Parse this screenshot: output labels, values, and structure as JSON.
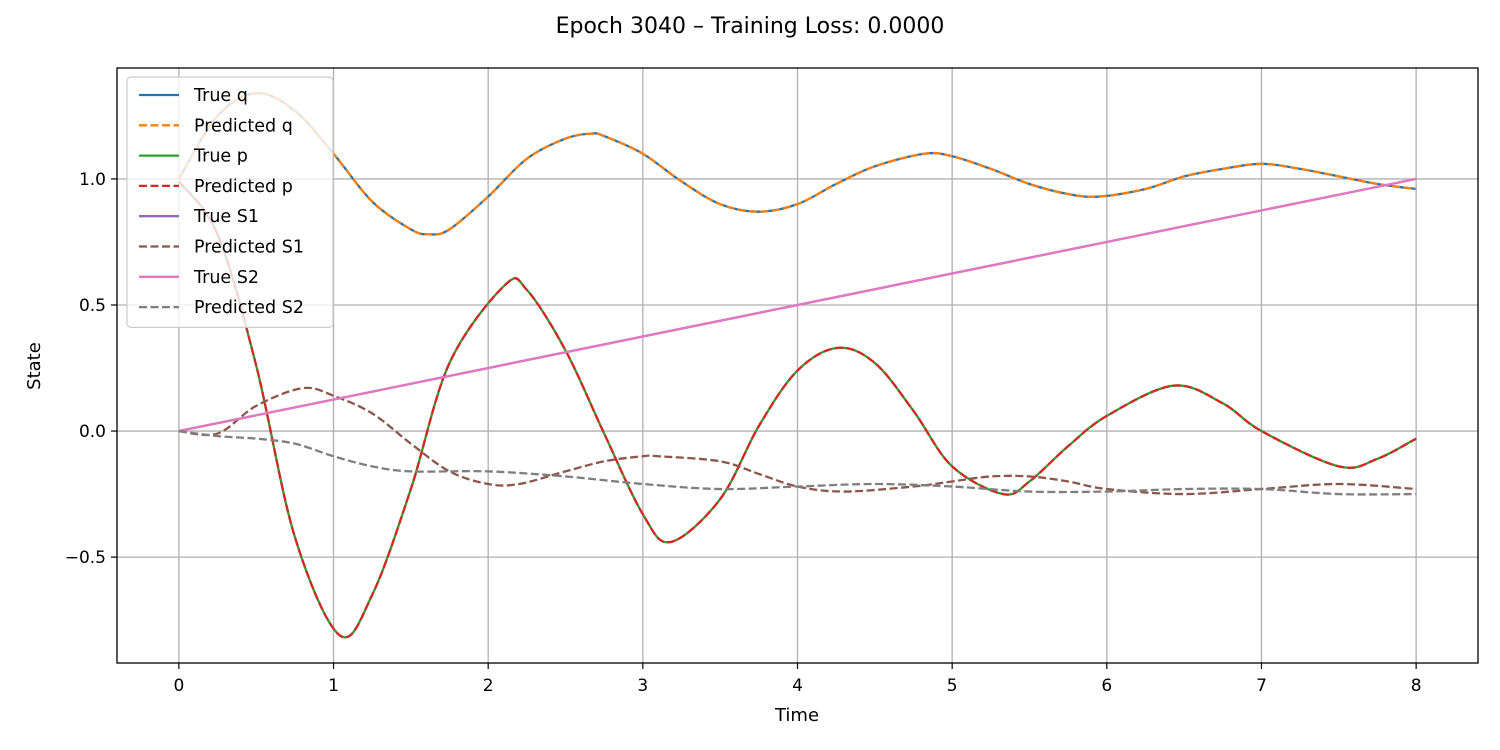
{
  "chart_data": {
    "type": "line",
    "title": "Epoch 3040 – Training Loss: 0.0000",
    "xlabel": "Time",
    "ylabel": "State",
    "xlim": [
      -0.4,
      8.4
    ],
    "ylim": [
      -0.92,
      1.44
    ],
    "xticks": [
      0,
      1,
      2,
      3,
      4,
      5,
      6,
      7,
      8
    ],
    "xtick_labels": [
      "0",
      "1",
      "2",
      "3",
      "4",
      "5",
      "6",
      "7",
      "8"
    ],
    "yticks": [
      -0.5,
      0.0,
      0.5,
      1.0
    ],
    "ytick_labels": [
      "−0.5",
      "0.0",
      "0.5",
      "1.0"
    ],
    "grid": true,
    "legend_position": "upper-left",
    "series": [
      {
        "name": "True q",
        "color": "#1f77b4",
        "style": "solid",
        "x": [
          0,
          0.25,
          0.5,
          0.75,
          1.0,
          1.25,
          1.5,
          1.62,
          1.75,
          2.0,
          2.25,
          2.5,
          2.67,
          2.75,
          3.0,
          3.25,
          3.5,
          3.75,
          4.0,
          4.25,
          4.5,
          4.82,
          5.0,
          5.25,
          5.5,
          5.75,
          5.95,
          6.25,
          6.5,
          6.75,
          7.0,
          7.25,
          7.5,
          7.75,
          8.0
        ],
        "y": [
          1.0,
          1.25,
          1.34,
          1.27,
          1.1,
          0.91,
          0.8,
          0.78,
          0.8,
          0.93,
          1.08,
          1.16,
          1.18,
          1.17,
          1.1,
          0.99,
          0.9,
          0.87,
          0.9,
          0.98,
          1.05,
          1.1,
          1.09,
          1.04,
          0.98,
          0.94,
          0.93,
          0.96,
          1.01,
          1.04,
          1.06,
          1.04,
          1.01,
          0.98,
          0.96
        ]
      },
      {
        "name": "Predicted q",
        "color": "#ff7f0e",
        "style": "dashed",
        "x": [
          0,
          0.25,
          0.5,
          0.75,
          1.0,
          1.25,
          1.5,
          1.62,
          1.75,
          2.0,
          2.25,
          2.5,
          2.67,
          2.75,
          3.0,
          3.25,
          3.5,
          3.75,
          4.0,
          4.25,
          4.5,
          4.82,
          5.0,
          5.25,
          5.5,
          5.75,
          5.95,
          6.25,
          6.5,
          6.75,
          7.0,
          7.25,
          7.5,
          7.75,
          8.0
        ],
        "y": [
          1.0,
          1.25,
          1.34,
          1.27,
          1.1,
          0.91,
          0.8,
          0.78,
          0.8,
          0.93,
          1.08,
          1.16,
          1.18,
          1.17,
          1.1,
          0.99,
          0.9,
          0.87,
          0.9,
          0.98,
          1.05,
          1.1,
          1.09,
          1.04,
          0.98,
          0.94,
          0.93,
          0.96,
          1.01,
          1.04,
          1.06,
          1.04,
          1.01,
          0.98,
          0.96
        ]
      },
      {
        "name": "True p",
        "color": "#2ca02c",
        "style": "solid",
        "x": [
          0,
          0.25,
          0.5,
          0.75,
          1.04,
          1.25,
          1.5,
          1.75,
          2.11,
          2.25,
          2.5,
          2.75,
          3.0,
          3.18,
          3.5,
          3.75,
          4.0,
          4.26,
          4.5,
          4.75,
          5.0,
          5.33,
          5.5,
          5.75,
          6.0,
          6.43,
          6.75,
          7.0,
          7.5,
          7.75,
          8.0
        ],
        "y": [
          0.99,
          0.78,
          0.26,
          -0.42,
          -0.81,
          -0.65,
          -0.23,
          0.27,
          0.58,
          0.56,
          0.32,
          -0.01,
          -0.33,
          -0.44,
          -0.27,
          0.02,
          0.24,
          0.33,
          0.27,
          0.08,
          -0.14,
          -0.25,
          -0.2,
          -0.06,
          0.06,
          0.18,
          0.11,
          0.0,
          -0.14,
          -0.11,
          -0.03
        ]
      },
      {
        "name": "Predicted p",
        "color": "#d62728",
        "style": "dashed",
        "x": [
          0,
          0.25,
          0.5,
          0.75,
          1.04,
          1.25,
          1.5,
          1.75,
          2.11,
          2.25,
          2.5,
          2.75,
          3.0,
          3.18,
          3.5,
          3.75,
          4.0,
          4.26,
          4.5,
          4.75,
          5.0,
          5.33,
          5.5,
          5.75,
          6.0,
          6.43,
          6.75,
          7.0,
          7.5,
          7.75,
          8.0
        ],
        "y": [
          0.99,
          0.78,
          0.26,
          -0.42,
          -0.81,
          -0.65,
          -0.23,
          0.27,
          0.58,
          0.56,
          0.32,
          -0.01,
          -0.33,
          -0.44,
          -0.27,
          0.02,
          0.24,
          0.33,
          0.27,
          0.08,
          -0.14,
          -0.25,
          -0.2,
          -0.06,
          0.06,
          0.18,
          0.11,
          0.0,
          -0.14,
          -0.11,
          -0.03
        ]
      },
      {
        "name": "True S1",
        "color": "#9467bd",
        "style": "solid",
        "x": [
          0,
          8
        ],
        "y": [
          0.0,
          1.0
        ]
      },
      {
        "name": "Predicted S1",
        "color": "#8c564b",
        "style": "dashed",
        "x": [
          0,
          0.25,
          0.5,
          0.8,
          1.0,
          1.25,
          1.5,
          1.75,
          2.0,
          2.2,
          2.5,
          2.75,
          3.0,
          3.1,
          3.5,
          3.75,
          4.0,
          4.3,
          4.75,
          5.0,
          5.25,
          5.5,
          5.75,
          6.0,
          6.5,
          7.0,
          7.5,
          8.0
        ],
        "y": [
          0.0,
          -0.01,
          0.1,
          0.17,
          0.14,
          0.07,
          -0.05,
          -0.16,
          -0.21,
          -0.21,
          -0.16,
          -0.12,
          -0.1,
          -0.1,
          -0.12,
          -0.17,
          -0.22,
          -0.24,
          -0.22,
          -0.2,
          -0.18,
          -0.18,
          -0.2,
          -0.23,
          -0.25,
          -0.23,
          -0.21,
          -0.23
        ]
      },
      {
        "name": "True S2",
        "color": "#e377c2",
        "style": "solid",
        "x": [
          0,
          8
        ],
        "y": [
          0.0,
          1.0
        ]
      },
      {
        "name": "Predicted S2",
        "color": "#7f7f7f",
        "style": "dashed",
        "x": [
          0,
          0.25,
          0.5,
          0.75,
          1.0,
          1.25,
          1.5,
          2.0,
          2.5,
          3.0,
          3.5,
          4.0,
          4.5,
          5.0,
          5.5,
          6.0,
          6.5,
          7.0,
          7.5,
          8.0
        ],
        "y": [
          0.0,
          -0.02,
          -0.03,
          -0.05,
          -0.1,
          -0.14,
          -0.16,
          -0.16,
          -0.18,
          -0.21,
          -0.23,
          -0.22,
          -0.21,
          -0.22,
          -0.24,
          -0.24,
          -0.23,
          -0.23,
          -0.25,
          -0.25
        ]
      }
    ]
  }
}
